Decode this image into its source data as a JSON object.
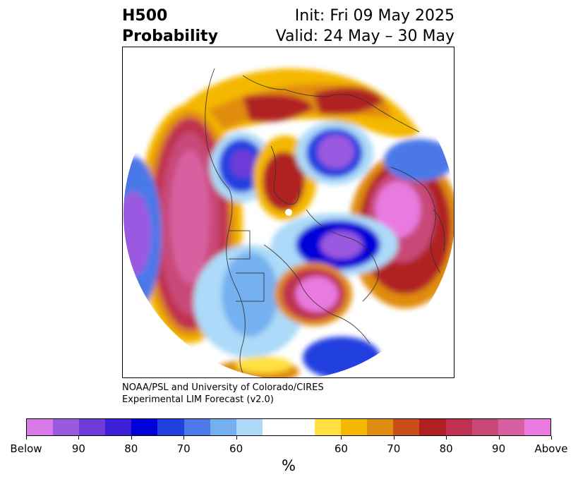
{
  "title": {
    "left_line1": "H500",
    "left_line2": "Probability",
    "right_line1": "Init: Fri 09 May 2025",
    "right_line2": "Valid: 24 May – 30 May"
  },
  "credit": {
    "line1": "NOAA/PSL and University of Colorado/CIRES",
    "line2": "Experimental LIM Forecast (v2.0)"
  },
  "colorbar": {
    "colors": [
      "#d97ae8",
      "#9b59e0",
      "#6e3ad8",
      "#3a1ed8",
      "#0000d8",
      "#2040e0",
      "#4c78e8",
      "#74b0f0",
      "#acdaf8",
      "#ffffff",
      "#ffffff",
      "#ffe040",
      "#f4b800",
      "#e08c10",
      "#c85018",
      "#b02020",
      "#c03050",
      "#c84878",
      "#d860a0",
      "#e87ae0"
    ],
    "tick_labels": [
      "Below",
      "90",
      "80",
      "70",
      "60",
      "60",
      "70",
      "80",
      "90",
      "Above"
    ],
    "unit": "%"
  },
  "map": {
    "projection": "north-polar-stereographic",
    "colors": {
      "above_max": "#e87ae0",
      "above_high": "#d860a0",
      "above_mid": "#c03050",
      "above_low": "#b02020",
      "above_orange": "#e08c10",
      "above_yellow": "#f4b800",
      "light_yellow": "#ffe040",
      "below_light": "#acdaf8",
      "below_blue": "#4c78e8",
      "below_dark": "#0000d8",
      "below_max": "#9b59e0"
    }
  }
}
